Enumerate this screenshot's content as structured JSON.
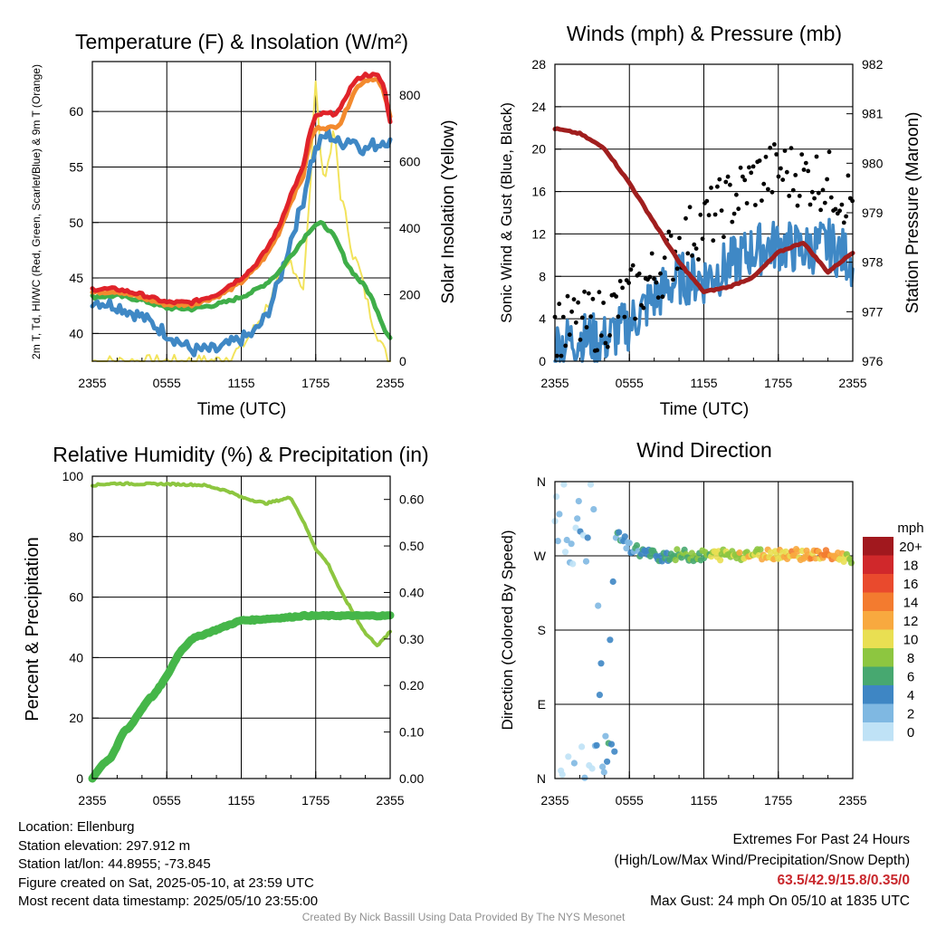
{
  "chart_data": [
    {
      "type": "line",
      "title": "Temperature (F) & Insolation (W/m²)",
      "xlabel": "Time (UTC)",
      "ylabel_left": "2m T, Td, HI/WC (Red, Green, Scarlet/Blue) & 9m T (Orange)",
      "ylabel_right": "Solar Insolation (Yellow)",
      "x_ticks": [
        "2355",
        "0555",
        "1155",
        "1755",
        "2355"
      ],
      "y_left_ticks": [
        "40",
        "45",
        "50",
        "55",
        "60"
      ],
      "y_right_ticks": [
        "0",
        "200",
        "400",
        "600",
        "800"
      ],
      "ylim_left": [
        37.5,
        64.5
      ],
      "ylim_right": [
        0,
        900
      ],
      "grid": true,
      "x_hours": [
        0,
        2,
        4,
        6,
        8,
        10,
        11,
        12,
        13,
        14,
        15,
        16,
        17,
        17.5,
        18,
        18.5,
        19,
        19.5,
        20,
        20.5,
        21,
        21.5,
        22,
        22.5,
        23,
        23.5,
        24
      ],
      "series": [
        {
          "name": "2m T",
          "color": "#e0232a",
          "axis": "left",
          "values": [
            44.0,
            44.0,
            43.5,
            42.8,
            42.8,
            43.5,
            44.3,
            45.0,
            46.0,
            47.5,
            49.5,
            52.5,
            55.0,
            58.0,
            59.5,
            59.8,
            59.8,
            59.8,
            60.2,
            61.5,
            62.5,
            63.0,
            63.3,
            63.3,
            63.2,
            62.3,
            59.0
          ]
        },
        {
          "name": "9m T",
          "color": "#f38a2e",
          "axis": "left",
          "values": [
            43.7,
            43.8,
            43.2,
            42.6,
            42.6,
            43.3,
            43.9,
            44.6,
            45.7,
            47.0,
            49.0,
            51.9,
            54.2,
            57.2,
            58.4,
            58.6,
            58.5,
            58.6,
            59.0,
            60.2,
            61.6,
            62.4,
            62.8,
            63.0,
            62.8,
            61.7,
            59.5
          ]
        },
        {
          "name": "Td",
          "color": "#3fae49",
          "axis": "left",
          "values": [
            43.3,
            43.4,
            43.0,
            42.3,
            42.2,
            42.6,
            42.9,
            43.3,
            43.8,
            44.5,
            45.5,
            47.0,
            48.5,
            49.3,
            49.8,
            49.9,
            49.4,
            48.7,
            47.6,
            46.3,
            45.5,
            44.8,
            44.2,
            43.2,
            42.0,
            40.5,
            39.6
          ]
        },
        {
          "name": "HI/WC",
          "color": "#3f88c5",
          "axis": "left",
          "values": [
            43.0,
            42.5,
            41.5,
            40.0,
            38.5,
            38.5,
            39.0,
            39.5,
            40.0,
            41.5,
            44.5,
            48.5,
            52.0,
            55.0,
            56.5,
            57.5,
            58.0,
            57.5,
            57.0,
            57.5,
            57.5,
            57.0,
            56.5,
            57.0,
            57.0,
            57.5,
            57.2
          ]
        },
        {
          "name": "Solar Insolation",
          "color": "#f2e35c",
          "axis": "right",
          "values": [
            0,
            0,
            0,
            0,
            0,
            2,
            15,
            40,
            95,
            160,
            240,
            300,
            220,
            480,
            860,
            560,
            580,
            700,
            500,
            420,
            320,
            280,
            200,
            130,
            80,
            30,
            0
          ]
        }
      ]
    },
    {
      "type": "scatter",
      "title": "Winds (mph) & Pressure (mb)",
      "xlabel": "Time (UTC)",
      "ylabel_left": "Sonic Wind & Gust (Blue, Black)",
      "ylabel_right": "Station Pressure (Maroon)",
      "x_ticks": [
        "2355",
        "0555",
        "1155",
        "1755",
        "2355"
      ],
      "y_left_ticks": [
        "0",
        "4",
        "8",
        "12",
        "16",
        "20",
        "24",
        "28"
      ],
      "y_right_ticks": [
        "976",
        "977",
        "978",
        "979",
        "980",
        "981",
        "982"
      ],
      "ylim_left": [
        0,
        28
      ],
      "ylim_right": [
        976,
        982
      ],
      "grid": true,
      "x_hours": [
        0,
        2,
        4,
        6,
        8,
        10,
        12,
        14,
        16,
        18,
        20,
        22,
        24
      ],
      "series": [
        {
          "name": "Sonic Wind",
          "color": "#3f88c5",
          "values": [
            1.5,
            2.2,
            2.0,
            3.5,
            6.0,
            7.8,
            7.8,
            9.0,
            10.5,
            11.0,
            10.5,
            11.0,
            9.5
          ]
        },
        {
          "name": "Gust",
          "color": "#000000",
          "values": [
            3.0,
            3.5,
            4.0,
            6.0,
            8.0,
            11.0,
            13.0,
            15.0,
            17.0,
            18.0,
            17.5,
            17.0,
            15.0
          ]
        },
        {
          "name": "Station Pressure",
          "color": "#a01e1e",
          "axis": "right",
          "values": [
            980.7,
            980.6,
            980.3,
            979.6,
            978.8,
            978.0,
            977.4,
            977.5,
            977.7,
            978.2,
            978.4,
            977.8,
            978.2
          ]
        }
      ]
    },
    {
      "type": "line",
      "title": "Relative Humidity (%) & Precipitation (in)",
      "xlabel": "",
      "ylabel_left": "Percent & Precipitation",
      "ylabel_right": "",
      "x_ticks": [
        "2355",
        "0555",
        "1155",
        "1755",
        "2355"
      ],
      "y_left_ticks": [
        "0",
        "20",
        "40",
        "60",
        "80",
        "100"
      ],
      "y_right_ticks": [
        "0.00",
        "0.10",
        "0.20",
        "0.30",
        "0.40",
        "0.50",
        "0.60"
      ],
      "ylim_left": [
        0,
        100
      ],
      "ylim_right": [
        0,
        0.65
      ],
      "grid": true,
      "x_hours": [
        0,
        0.5,
        1,
        1.5,
        2,
        2.5,
        3,
        3.5,
        4,
        4.5,
        5,
        6,
        7,
        8,
        9,
        10,
        11,
        12,
        13,
        14,
        15,
        16,
        17,
        18,
        19,
        20,
        21,
        22,
        23,
        24
      ],
      "series": [
        {
          "name": "Relative Humidity",
          "color": "#8dc640",
          "axis": "left",
          "values": [
            97.0,
            97.2,
            97.4,
            97.5,
            97.6,
            97.5,
            97.5,
            97.4,
            97.4,
            97.4,
            97.4,
            97.4,
            97.3,
            97.2,
            97.0,
            96.0,
            95.0,
            93.0,
            92.0,
            91.0,
            92.0,
            93.0,
            85.0,
            76.0,
            71.0,
            62.0,
            55.0,
            48.0,
            44.0,
            48.5
          ]
        },
        {
          "name": "Precipitation",
          "color": "#45b649",
          "axis": "right",
          "values": [
            0.0,
            0.02,
            0.035,
            0.045,
            0.07,
            0.1,
            0.11,
            0.13,
            0.15,
            0.17,
            0.18,
            0.22,
            0.27,
            0.3,
            0.31,
            0.32,
            0.33,
            0.34,
            0.341,
            0.343,
            0.345,
            0.347,
            0.35,
            0.35,
            0.35,
            0.35,
            0.35,
            0.35,
            0.35,
            0.35
          ]
        }
      ]
    },
    {
      "type": "scatter",
      "title": "Wind Direction",
      "xlabel": "",
      "ylabel": "Direction (Colored By Speed)",
      "x_ticks": [
        "2355",
        "0555",
        "1155",
        "1755",
        "2355"
      ],
      "y_ticks": [
        "N",
        "E",
        "S",
        "W",
        "N"
      ],
      "ylim": [
        0,
        360
      ],
      "grid": true,
      "legend": {
        "title": "mph",
        "placement": "right",
        "labels": [
          "20+",
          "18",
          "16",
          "14",
          "12",
          "10",
          "8",
          "6",
          "4",
          "2",
          "0"
        ],
        "colors": [
          "#a1181e",
          "#d0282b",
          "#e94a2d",
          "#f37b2f",
          "#f8a93f",
          "#e9df52",
          "#8dc640",
          "#47a870",
          "#3e86c4",
          "#7fb8e2",
          "#bfe2f6"
        ]
      },
      "x_hours": [
        0,
        1,
        2,
        3,
        4,
        5,
        6,
        8,
        10,
        12,
        14,
        16,
        18,
        20,
        22,
        24
      ],
      "direction_deg": [
        350,
        320,
        300,
        340,
        10,
        300,
        280,
        270,
        271,
        270,
        272,
        272,
        273,
        272,
        270,
        268
      ],
      "speed_mph": [
        1,
        1,
        2,
        1,
        3,
        4,
        4,
        5,
        7,
        8,
        9,
        10,
        11,
        12,
        13,
        8
      ]
    }
  ],
  "station": {
    "location": "Location: Ellenburg",
    "elevation": "Station elevation: 297.912 m",
    "latlon": "Station lat/lon: 44.8955; -73.845",
    "created": "Figure created on Sat, 2025-05-10, at 23:59 UTC",
    "recent": "Most recent data timestamp: 2025/05/10 23:55:00"
  },
  "extremes": {
    "title": "Extremes For Past 24 Hours",
    "subtitle": "(High/Low/Max Wind/Precipitation/Snow Depth)",
    "values": "63.5/42.9/15.8/0.35/0",
    "gust": "Max Gust: 24 mph On 05/10 at 1835 UTC"
  },
  "credit": "Created By Nick Bassill Using Data Provided By The NYS Mesonet"
}
